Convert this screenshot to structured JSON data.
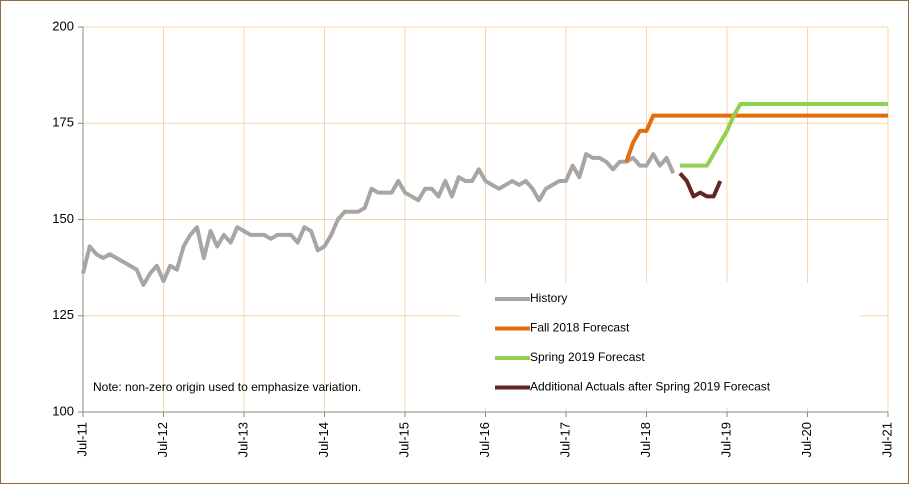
{
  "chart_data": {
    "type": "line",
    "note": "Note: non-zero origin used to emphasize variation.",
    "x": [
      "2011-07",
      "2011-08",
      "2011-09",
      "2011-10",
      "2011-11",
      "2011-12",
      "2012-01",
      "2012-02",
      "2012-03",
      "2012-04",
      "2012-05",
      "2012-06",
      "2012-07",
      "2012-08",
      "2012-09",
      "2012-10",
      "2012-11",
      "2012-12",
      "2013-01",
      "2013-02",
      "2013-03",
      "2013-04",
      "2013-05",
      "2013-06",
      "2013-07",
      "2013-08",
      "2013-09",
      "2013-10",
      "2013-11",
      "2013-12",
      "2014-01",
      "2014-02",
      "2014-03",
      "2014-04",
      "2014-05",
      "2014-06",
      "2014-07",
      "2014-08",
      "2014-09",
      "2014-10",
      "2014-11",
      "2014-12",
      "2015-01",
      "2015-02",
      "2015-03",
      "2015-04",
      "2015-05",
      "2015-06",
      "2015-07",
      "2015-08",
      "2015-09",
      "2015-10",
      "2015-11",
      "2015-12",
      "2016-01",
      "2016-02",
      "2016-03",
      "2016-04",
      "2016-05",
      "2016-06",
      "2016-07",
      "2016-08",
      "2016-09",
      "2016-10",
      "2016-11",
      "2016-12",
      "2017-01",
      "2017-02",
      "2017-03",
      "2017-04",
      "2017-05",
      "2017-06",
      "2017-07",
      "2017-08",
      "2017-09",
      "2017-10",
      "2017-11",
      "2017-12",
      "2018-01",
      "2018-02",
      "2018-03",
      "2018-04",
      "2018-05",
      "2018-06",
      "2018-07",
      "2018-08",
      "2018-09",
      "2018-10",
      "2018-11",
      "2018-12",
      "2019-01",
      "2019-02",
      "2019-03",
      "2019-04",
      "2019-05",
      "2019-06",
      "2019-07",
      "2019-08",
      "2019-09",
      "2019-10",
      "2019-11",
      "2019-12",
      "2020-01",
      "2020-02",
      "2020-03",
      "2020-04",
      "2020-05",
      "2020-06",
      "2020-07",
      "2020-08",
      "2020-09",
      "2020-10",
      "2020-11",
      "2020-12",
      "2021-01",
      "2021-02",
      "2021-03",
      "2021-04",
      "2021-05",
      "2021-06",
      "2021-07"
    ],
    "series": [
      {
        "name": "History",
        "color": "#a6a6a6",
        "values": [
          136,
          143,
          141,
          140,
          141,
          140,
          139,
          138,
          137,
          133,
          136,
          138,
          134,
          138,
          137,
          143,
          146,
          148,
          140,
          147,
          143,
          146,
          144,
          148,
          147,
          146,
          146,
          146,
          145,
          146,
          146,
          146,
          144,
          148,
          147,
          142,
          143,
          146,
          150,
          152,
          152,
          152,
          153,
          158,
          157,
          157,
          157,
          160,
          157,
          156,
          155,
          158,
          158,
          156,
          160,
          156,
          161,
          160,
          160,
          163,
          160,
          159,
          158,
          159,
          160,
          159,
          160,
          158,
          155,
          158,
          159,
          160,
          160,
          164,
          161,
          167,
          166,
          166,
          165,
          163,
          165,
          165,
          166,
          164,
          164,
          167,
          164,
          166,
          162,
          null,
          null,
          null,
          null,
          null,
          null,
          null,
          null,
          null,
          null,
          null,
          null,
          null,
          null,
          null,
          null,
          null,
          null,
          null,
          null,
          null,
          null,
          null,
          null,
          null,
          null,
          null,
          null,
          null,
          null,
          null,
          null
        ]
      },
      {
        "name": "Fall 2018 Forecast",
        "color": "#e46c0a",
        "values": [
          null,
          null,
          null,
          null,
          null,
          null,
          null,
          null,
          null,
          null,
          null,
          null,
          null,
          null,
          null,
          null,
          null,
          null,
          null,
          null,
          null,
          null,
          null,
          null,
          null,
          null,
          null,
          null,
          null,
          null,
          null,
          null,
          null,
          null,
          null,
          null,
          null,
          null,
          null,
          null,
          null,
          null,
          null,
          null,
          null,
          null,
          null,
          null,
          null,
          null,
          null,
          null,
          null,
          null,
          null,
          null,
          null,
          null,
          null,
          null,
          null,
          null,
          null,
          null,
          null,
          null,
          null,
          null,
          null,
          null,
          null,
          null,
          null,
          null,
          null,
          null,
          null,
          null,
          null,
          null,
          null,
          165,
          170,
          173,
          173,
          177,
          177,
          177,
          177,
          177,
          177,
          177,
          177,
          177,
          177,
          177,
          177,
          177,
          177,
          177,
          177,
          177,
          177,
          177,
          177,
          177,
          177,
          177,
          177,
          177,
          177,
          177,
          177,
          177,
          177,
          177,
          177,
          177,
          177,
          177,
          177
        ]
      },
      {
        "name": "Spring 2019 Forecast",
        "color": "#92d050",
        "values": [
          null,
          null,
          null,
          null,
          null,
          null,
          null,
          null,
          null,
          null,
          null,
          null,
          null,
          null,
          null,
          null,
          null,
          null,
          null,
          null,
          null,
          null,
          null,
          null,
          null,
          null,
          null,
          null,
          null,
          null,
          null,
          null,
          null,
          null,
          null,
          null,
          null,
          null,
          null,
          null,
          null,
          null,
          null,
          null,
          null,
          null,
          null,
          null,
          null,
          null,
          null,
          null,
          null,
          null,
          null,
          null,
          null,
          null,
          null,
          null,
          null,
          null,
          null,
          null,
          null,
          null,
          null,
          null,
          null,
          null,
          null,
          null,
          null,
          null,
          null,
          null,
          null,
          null,
          null,
          null,
          null,
          null,
          null,
          null,
          null,
          null,
          null,
          null,
          null,
          164,
          164,
          164,
          164,
          164,
          167,
          170,
          173,
          177,
          180,
          180,
          180,
          180,
          180,
          180,
          180,
          180,
          180,
          180,
          180,
          180,
          180,
          180,
          180,
          180,
          180,
          180,
          180,
          180,
          180,
          180,
          180
        ]
      },
      {
        "name": "Additional Actuals after Spring 2019 Forecast",
        "color": "#632523",
        "values": [
          null,
          null,
          null,
          null,
          null,
          null,
          null,
          null,
          null,
          null,
          null,
          null,
          null,
          null,
          null,
          null,
          null,
          null,
          null,
          null,
          null,
          null,
          null,
          null,
          null,
          null,
          null,
          null,
          null,
          null,
          null,
          null,
          null,
          null,
          null,
          null,
          null,
          null,
          null,
          null,
          null,
          null,
          null,
          null,
          null,
          null,
          null,
          null,
          null,
          null,
          null,
          null,
          null,
          null,
          null,
          null,
          null,
          null,
          null,
          null,
          null,
          null,
          null,
          null,
          null,
          null,
          null,
          null,
          null,
          null,
          null,
          null,
          null,
          null,
          null,
          null,
          null,
          null,
          null,
          null,
          null,
          null,
          null,
          null,
          null,
          null,
          null,
          null,
          null,
          162,
          160,
          156,
          157,
          156,
          156,
          160,
          null,
          null,
          null,
          null,
          null,
          null,
          null,
          null,
          null,
          null,
          null,
          null,
          null,
          null,
          null,
          null,
          null,
          null,
          null,
          null,
          null,
          null,
          null,
          null,
          null
        ]
      }
    ],
    "ylim": [
      100,
      200
    ],
    "yticks": [
      100,
      125,
      150,
      175,
      200
    ],
    "xticks": [
      {
        "value": "2011-07",
        "label": "Jul-11"
      },
      {
        "value": "2012-07",
        "label": "Jul-12"
      },
      {
        "value": "2013-07",
        "label": "Jul-13"
      },
      {
        "value": "2014-07",
        "label": "Jul-14"
      },
      {
        "value": "2015-07",
        "label": "Jul-15"
      },
      {
        "value": "2016-07",
        "label": "Jul-16"
      },
      {
        "value": "2017-07",
        "label": "Jul-17"
      },
      {
        "value": "2018-07",
        "label": "Jul-18"
      },
      {
        "value": "2019-07",
        "label": "Jul-19"
      },
      {
        "value": "2020-07",
        "label": "Jul-20"
      },
      {
        "value": "2021-07",
        "label": "Jul-21"
      }
    ],
    "grid": true,
    "legend": "lower right"
  }
}
